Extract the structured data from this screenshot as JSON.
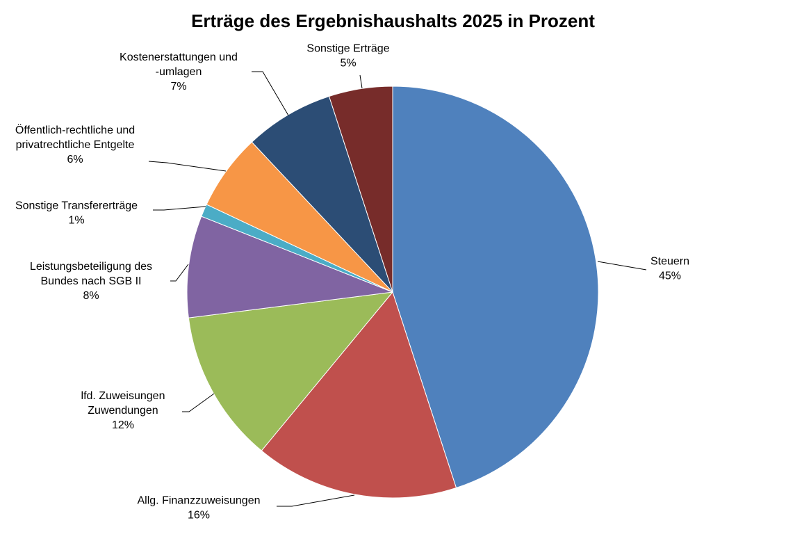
{
  "chart_data": {
    "type": "pie",
    "title": "Erträge des Ergebnishaushalts 2025 in Prozent",
    "slices": [
      {
        "label_lines": [
          "Steuern"
        ],
        "value": 45,
        "value_label": "45%",
        "color": "#4F81BD"
      },
      {
        "label_lines": [
          "Allg. Finanzzuweisungen"
        ],
        "value": 16,
        "value_label": "16%",
        "color": "#C0504D"
      },
      {
        "label_lines": [
          "lfd. Zuweisungen",
          "Zuwendungen"
        ],
        "value": 12,
        "value_label": "12%",
        "color": "#9BBB59"
      },
      {
        "label_lines": [
          "Leistungsbeteiligung des",
          "Bundes nach SGB II"
        ],
        "value": 8,
        "value_label": "8%",
        "color": "#8064A2"
      },
      {
        "label_lines": [
          "Sonstige Transfererträge"
        ],
        "value": 1,
        "value_label": "1%",
        "color": "#4BACC6"
      },
      {
        "label_lines": [
          "Öffentlich-rechtliche und",
          "privatrechtliche Entgelte"
        ],
        "value": 6,
        "value_label": "6%",
        "color": "#F79646"
      },
      {
        "label_lines": [
          "Kostenerstattungen und",
          "-umlagen"
        ],
        "value": 7,
        "value_label": "7%",
        "color": "#2C4D75"
      },
      {
        "label_lines": [
          "Sonstige Erträge"
        ],
        "value": 5,
        "value_label": "5%",
        "color": "#772C2A"
      }
    ]
  }
}
